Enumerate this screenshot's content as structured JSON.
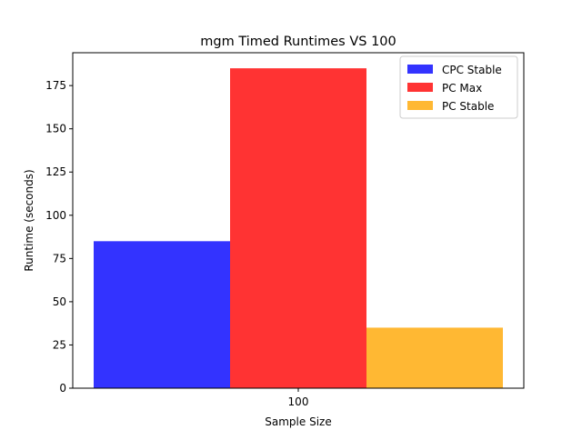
{
  "chart_data": {
    "type": "bar",
    "title": "mgm Timed Runtimes VS 100",
    "xlabel": "Sample Size",
    "ylabel": "Runtime (seconds)",
    "categories": [
      "100"
    ],
    "ylim": [
      0,
      194
    ],
    "yticks": [
      0,
      25,
      50,
      75,
      100,
      125,
      150,
      175
    ],
    "grid": false,
    "legend_position": "top-right",
    "series": [
      {
        "name": "CPC Stable",
        "values": [
          85
        ],
        "color": "#3333ff"
      },
      {
        "name": "PC Max",
        "values": [
          185
        ],
        "color": "#ff3333"
      },
      {
        "name": "PC Stable",
        "values": [
          35
        ],
        "color": "#ffb833"
      }
    ]
  }
}
